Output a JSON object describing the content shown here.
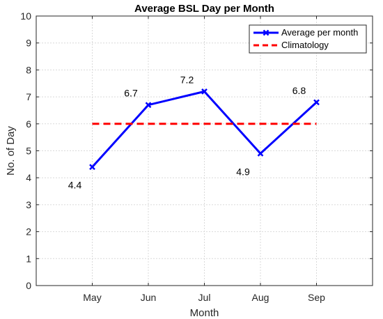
{
  "chart_data": {
    "type": "line",
    "title": "Average BSL Day per Month",
    "xlabel": "Month",
    "ylabel": "No. of Day",
    "categories": [
      "May",
      "Jun",
      "Jul",
      "Aug",
      "Sep"
    ],
    "x_range_categories": [
      "",
      "May",
      "Jun",
      "Jul",
      "Aug",
      "Sep",
      ""
    ],
    "ylim": [
      0,
      10
    ],
    "yticks": [
      0,
      1,
      2,
      3,
      4,
      5,
      6,
      7,
      8,
      9,
      10
    ],
    "grid": true,
    "legend_position": "top-right",
    "series": [
      {
        "name": "Average per month",
        "values": [
          4.4,
          6.7,
          7.2,
          4.9,
          6.8
        ],
        "value_labels": [
          "4.4",
          "6.7",
          "7.2",
          "4.9",
          "6.8"
        ],
        "color": "#0000ff",
        "style": "solid",
        "marker": "x"
      },
      {
        "name": "Climatology",
        "values": [
          6,
          6,
          6,
          6,
          6
        ],
        "color": "#ff0000",
        "style": "dashed",
        "marker": "none"
      }
    ]
  }
}
